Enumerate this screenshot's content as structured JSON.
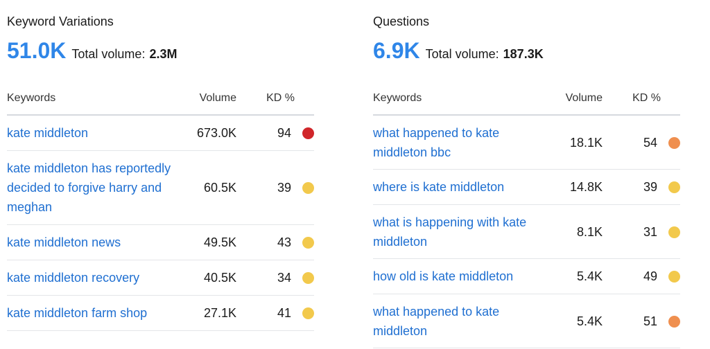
{
  "colors": {
    "accent": "#2f86e8",
    "link": "#1f6fd1",
    "kd_red": "#d0262a",
    "kd_orange": "#ef8f4f",
    "kd_yellow": "#f2c94c"
  },
  "variations": {
    "title": "Keyword Variations",
    "count": "51.0K",
    "total_label": "Total volume:",
    "total_value": "2.3M",
    "headers": {
      "keyword": "Keywords",
      "volume": "Volume",
      "kd": "KD %"
    },
    "rows": [
      {
        "keyword": "kate middleton",
        "volume": "673.0K",
        "kd": "94",
        "kd_color": "#d0262a"
      },
      {
        "keyword": "kate middleton has reportedly decided to forgive harry and meghan",
        "volume": "60.5K",
        "kd": "39",
        "kd_color": "#f2c94c"
      },
      {
        "keyword": "kate middleton news",
        "volume": "49.5K",
        "kd": "43",
        "kd_color": "#f2c94c"
      },
      {
        "keyword": "kate middleton recovery",
        "volume": "40.5K",
        "kd": "34",
        "kd_color": "#f2c94c"
      },
      {
        "keyword": "kate middleton farm shop",
        "volume": "27.1K",
        "kd": "41",
        "kd_color": "#f2c94c"
      }
    ]
  },
  "questions": {
    "title": "Questions",
    "count": "6.9K",
    "total_label": "Total volume:",
    "total_value": "187.3K",
    "headers": {
      "keyword": "Keywords",
      "volume": "Volume",
      "kd": "KD %"
    },
    "rows": [
      {
        "keyword": "what happened to kate middleton bbc",
        "volume": "18.1K",
        "kd": "54",
        "kd_color": "#ef8f4f"
      },
      {
        "keyword": "where is kate middleton",
        "volume": "14.8K",
        "kd": "39",
        "kd_color": "#f2c94c"
      },
      {
        "keyword": "what is happening with kate middleton",
        "volume": "8.1K",
        "kd": "31",
        "kd_color": "#f2c94c"
      },
      {
        "keyword": "how old is kate middleton",
        "volume": "5.4K",
        "kd": "49",
        "kd_color": "#f2c94c"
      },
      {
        "keyword": "what happened to kate middleton",
        "volume": "5.4K",
        "kd": "51",
        "kd_color": "#ef8f4f"
      }
    ]
  }
}
